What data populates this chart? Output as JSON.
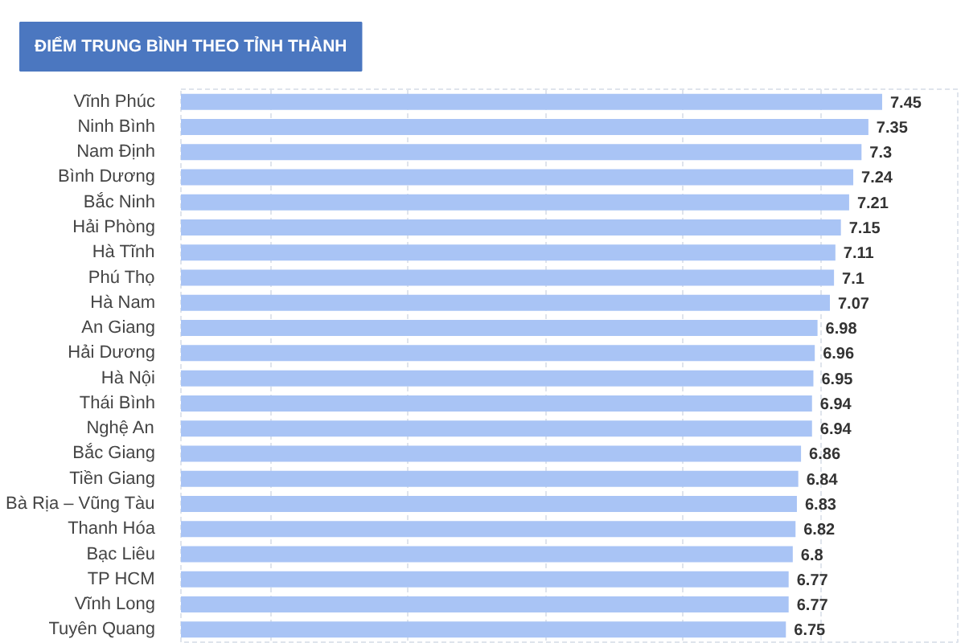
{
  "chart_data": {
    "type": "bar",
    "orientation": "horizontal",
    "title": "ĐIỂM TRUNG BÌNH THEO TỈNH THÀNH",
    "categories": [
      "Vĩnh Phúc",
      "Ninh Bình",
      "Nam Định",
      "Bình Dương",
      "Bắc Ninh",
      "Hải Phòng",
      "Hà Tĩnh",
      "Phú Thọ",
      "Hà Nam",
      "An Giang",
      "Hải Dương",
      "Hà Nội",
      "Thái Bình",
      "Nghệ An",
      "Bắc Giang",
      "Tiền Giang",
      "Bà Rịa – Vũng Tàu",
      "Thanh Hóa",
      "Bạc Liêu",
      "TP HCM",
      "Vĩnh Long",
      "Tuyên Quang"
    ],
    "values": [
      7.45,
      7.35,
      7.3,
      7.24,
      7.21,
      7.15,
      7.11,
      7.1,
      7.07,
      6.98,
      6.96,
      6.95,
      6.94,
      6.94,
      6.86,
      6.84,
      6.83,
      6.82,
      6.8,
      6.77,
      6.77,
      6.75
    ],
    "color": "#a9c4f5",
    "data_labels": true,
    "xlim": [
      2.35,
      8
    ],
    "xticks": [
      {
        "value": 3,
        "label": null
      },
      {
        "value": 4,
        "label": null
      },
      {
        "value": 5,
        "label": null
      },
      {
        "value": 6,
        "label": null
      },
      {
        "value": 7,
        "label": null
      }
    ],
    "grid": "x",
    "tick_labels": "y"
  }
}
